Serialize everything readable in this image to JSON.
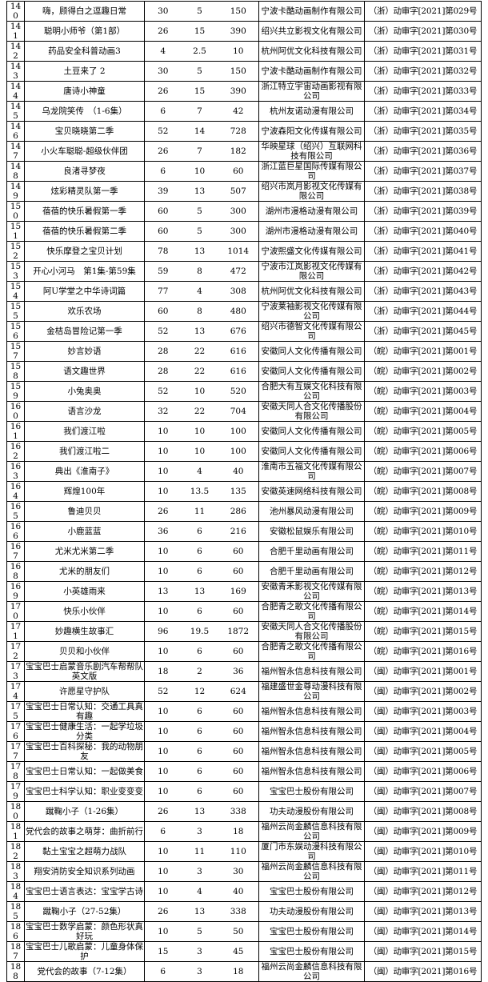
{
  "table": {
    "rows": [
      [
        "140",
        "嗨，顾得白之逗趣日常",
        "30",
        "5",
        "150",
        "宁波卡酷动画制作有限公司",
        "（浙）动审字[2021]第029号"
      ],
      [
        "141",
        "聪明小师爷（第1部）",
        "26",
        "15",
        "390",
        "绍兴共立影视文化有限公司",
        "（浙）动审字[2021]第030号"
      ],
      [
        "142",
        "药品安全科普动画3",
        "4",
        "2.5",
        "10",
        "杭州阿优文化科技有限公司",
        "（浙）动审字[2021]第031号"
      ],
      [
        "143",
        "土豆来了 2",
        "30",
        "5",
        "150",
        "宁波卡酷动画制作有限公司",
        "（浙）动审字[2021]第032号"
      ],
      [
        "144",
        "唐诗小神童",
        "26",
        "15",
        "390",
        "浙江特立宇宙动画影视有限公司",
        "（浙）动审字[2021]第033号"
      ],
      [
        "145",
        "乌龙院笑传　（1-6集）",
        "6",
        "7",
        "42",
        "杭州友诺动漫有限公司",
        "（浙）动审字[2021]第034号"
      ],
      [
        "146",
        "宝贝晓晓第二季",
        "52",
        "14",
        "728",
        "宁波森阳文化传媒有限公司",
        "（浙）动审字[2021]第035号"
      ],
      [
        "147",
        "小火车聪聪-超级伙伴团",
        "26",
        "7",
        "182",
        "华映星球（绍兴）互联网科技有限公司",
        "（浙）动审字[2021]第036号"
      ],
      [
        "148",
        "良渚寻梦夜",
        "6",
        "10",
        "60",
        "浙江蓝巨星国际传媒有限公司",
        "（浙）动审字[2021]第037号"
      ],
      [
        "149",
        "炫彩精灵队第一季",
        "39",
        "13",
        "507",
        "绍兴市岚月影视文化传媒有限公司",
        "（浙）动审字[2021]第038号"
      ],
      [
        "150",
        "蓓蓓的快乐暑假第一季",
        "60",
        "5",
        "300",
        "湖州市漫格动漫有限公司",
        "（浙）动审字[2021]第039号"
      ],
      [
        "151",
        "蓓蓓的快乐暑假第二季",
        "60",
        "5",
        "300",
        "湖州市漫格动漫有限公司",
        "（浙）动审字[2021]第040号"
      ],
      [
        "152",
        "快乐摩登之宝贝计划",
        "78",
        "13",
        "1014",
        "宁波熙盛文化传媒有限公司",
        "（浙）动审字[2021]第041号"
      ],
      [
        "153",
        "开心小河马　第1集-第59集",
        "59",
        "8",
        "472",
        "宁波市江岚影视文化传媒有限公司",
        "（浙）动审字[2021]第042号"
      ],
      [
        "154",
        "阿U学堂之中华诗词篇",
        "77",
        "4",
        "308",
        "杭州阿优文化科技有限公司",
        "（浙）动审字[2021]第043号"
      ],
      [
        "155",
        "欢乐农场",
        "60",
        "8",
        "480",
        "宁波莱袖影视文化传媒有限公司",
        "（浙）动审字[2021]第044号"
      ],
      [
        "156",
        "金桔岛冒险记第一季",
        "52",
        "13",
        "676",
        "绍兴市德智文化传媒有限公司",
        "（浙）动审字[2021]第045号"
      ],
      [
        "157",
        "妙言妙语",
        "28",
        "22",
        "616",
        "安徽同人文化传播有限公司",
        "（皖）动审字[2021]第001号"
      ],
      [
        "158",
        "语文趣世界",
        "28",
        "22",
        "616",
        "安徽同人文化传播有限公司",
        "（皖）动审字[2021]第002号"
      ],
      [
        "159",
        "小兔奥奥",
        "52",
        "10",
        "520",
        "合肥大有互娱文化科技有限公司",
        "（皖）动审字[2021]第003号"
      ],
      [
        "160",
        "语言沙龙",
        "32",
        "22",
        "704",
        "安徽天同人合文化传播股份有限公司",
        "（皖）动审字[2021]第004号"
      ],
      [
        "161",
        "我们渡江啦",
        "10",
        "10",
        "100",
        "安徽同人文化传播有限公司",
        "（皖）动审字[2021]第005号"
      ],
      [
        "162",
        "我们渡江啦二",
        "10",
        "10",
        "100",
        "安徽同人文化传播有限公司",
        "（皖）动审字[2021]第006号"
      ],
      [
        "163",
        "典出《淮南子》",
        "10",
        "4",
        "40",
        "淮南市五福文化传媒有限公司",
        "（皖）动审字[2021]第007号"
      ],
      [
        "164",
        "辉煌100年",
        "10",
        "13.5",
        "135",
        "安徽英速网络科技有限公司",
        "（皖）动审字[2021]第008号"
      ],
      [
        "165",
        "鲁迪贝贝",
        "26",
        "11",
        "286",
        "池州暴风动漫有限公司",
        "（皖）动审字[2021]第009号"
      ],
      [
        "166",
        "小鹿蓝蓝",
        "36",
        "6",
        "216",
        "安徽松鼠娱乐有限公司",
        "（皖）动审字[2021]第010号"
      ],
      [
        "167",
        "尤米尤米第二季",
        "10",
        "6",
        "60",
        "合肥千里动画有限公司",
        "（皖）动审字[2021]第011号"
      ],
      [
        "168",
        "尤米的朋友们",
        "10",
        "6",
        "60",
        "合肥千里动画有限公司",
        "（皖）动审字[2021]第012号"
      ],
      [
        "169",
        "小英雄雨来",
        "13",
        "13",
        "169",
        "安徽青禾影视文化传媒有限公司",
        "（皖）动审字[2021]第013号"
      ],
      [
        "170",
        "快乐小伙伴",
        "10",
        "6",
        "60",
        "合肥青之歌文化传播有限公司",
        "（皖）动审字[2021]第014号"
      ],
      [
        "171",
        "妙趣横生故事汇",
        "96",
        "19.5",
        "1872",
        "安徽天同人合文化传播股份有限公司",
        "（皖）动审字[2021]第015号"
      ],
      [
        "172",
        "贝贝和小伙伴",
        "10",
        "6",
        "60",
        "合肥青之歌文化传播有限公司",
        "（皖）动审字[2021]第016号"
      ],
      [
        "173",
        "宝宝巴士启蒙音乐剧汽车帮帮队英文版",
        "18",
        "2",
        "36",
        "福州智永信息科技有限公司",
        "（闽）动审字[2021]第001号"
      ],
      [
        "174",
        "许愿星守护队",
        "52",
        "12",
        "624",
        "福建盛世金尊动漫科技有限公司",
        "（闽）动审字[2021]第002号"
      ],
      [
        "175",
        "宝宝巴士日常认知：交通工具真有趣",
        "10",
        "6",
        "60",
        "福州智永信息科技有限公司",
        "（闽）动审字[2021]第003号"
      ],
      [
        "176",
        "宝宝巴士健康生活：一起学垃圾分类",
        "10",
        "6",
        "60",
        "福州智永信息科技有限公司",
        "（闽）动审字[2021]第004号"
      ],
      [
        "177",
        "宝宝巴士百科探秘：我的动物朋友",
        "10",
        "6",
        "60",
        "福州智永信息科技有限公司",
        "（闽）动审字[2021]第005号"
      ],
      [
        "178",
        "宝宝巴士日常认知：一起做美食",
        "10",
        "6",
        "60",
        "福州智永信息科技有限公司",
        "（闽）动审字[2021]第006号"
      ],
      [
        "179",
        "宝宝巴士科学认知：职业变变变",
        "10",
        "6",
        "60",
        "宝宝巴士股份有限公司",
        "（闽）动审字[2021]第007号"
      ],
      [
        "180",
        "蹴鞠小子（1-26集）",
        "26",
        "13",
        "338",
        "功夫动漫股份有限公司",
        "（闽）动审字[2021]第008号"
      ],
      [
        "181",
        "党代会的故事之萌芽：曲折前行",
        "6",
        "3",
        "18",
        "福州云尚金麟信息科技有限公司",
        "（闽）动审字[2021]第009号"
      ],
      [
        "182",
        "黏土宝宝之超萌力战队",
        "10",
        "11",
        "110",
        "厦门市东娱动漫科技有限公司",
        "（闽）动审字[2021]第010号"
      ],
      [
        "183",
        "翔安消防安全知识系列动画",
        "10",
        "3",
        "30",
        "福州云尚金麟信息科技有限公司",
        "（闽）动审字[2021]第011号"
      ],
      [
        "184",
        "宝宝巴士语言表达：宝宝学古诗",
        "10",
        "4",
        "40",
        "宝宝巴士股份有限公司",
        "（闽）动审字[2021]第012号"
      ],
      [
        "185",
        "蹴鞠小子（27-52集）",
        "26",
        "13",
        "338",
        "功夫动漫股份有限公司",
        "（闽）动审字[2021]第013号"
      ],
      [
        "186",
        "宝宝巴士数学启蒙：颜色形状真好玩",
        "10",
        "5",
        "50",
        "宝宝巴士股份有限公司",
        "（闽）动审字[2021]第014号"
      ],
      [
        "187",
        "宝宝巴士儿歌启蒙：儿童身体保护",
        "15",
        "3",
        "45",
        "宝宝巴士股份有限公司",
        "（闽）动审字[2021]第015号"
      ],
      [
        "188",
        "党代会的故事（7-12集）",
        "6",
        "3",
        "18",
        "福州云尚金麟信息科技有限公司",
        "（闽）动审字[2021]第016号"
      ]
    ]
  }
}
